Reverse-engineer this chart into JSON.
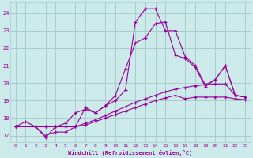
{
  "xlabel": "Windchill (Refroidissement éolien,°C)",
  "xlim": [
    -0.5,
    23.5
  ],
  "ylim": [
    16.6,
    24.6
  ],
  "yticks": [
    17,
    18,
    19,
    20,
    21,
    22,
    23,
    24
  ],
  "xticks": [
    0,
    1,
    2,
    3,
    4,
    5,
    6,
    7,
    8,
    9,
    10,
    11,
    12,
    13,
    14,
    15,
    16,
    17,
    18,
    19,
    20,
    21,
    22,
    23
  ],
  "bg_color": "#cceaea",
  "grid_color": "#aacccc",
  "line_color": "#990099",
  "lines": [
    {
      "x": [
        0,
        1,
        2,
        3,
        4,
        5,
        6,
        7,
        8,
        9,
        10,
        11,
        12,
        13,
        14,
        15,
        16,
        17,
        18,
        19,
        20,
        21,
        22,
        23
      ],
      "y": [
        17.5,
        17.8,
        17.5,
        17.0,
        17.2,
        17.2,
        17.5,
        18.6,
        18.3,
        18.7,
        19.0,
        19.6,
        23.5,
        24.25,
        24.25,
        23.0,
        23.0,
        21.5,
        21.0,
        19.9,
        20.2,
        21.0,
        19.3,
        19.2
      ]
    },
    {
      "x": [
        2,
        3,
        4,
        5,
        6,
        7,
        8,
        9,
        10,
        11,
        12,
        13,
        14,
        15,
        16,
        17,
        18,
        19,
        20,
        21,
        22,
        23
      ],
      "y": [
        17.5,
        16.9,
        17.5,
        17.7,
        18.3,
        18.5,
        18.3,
        18.7,
        19.3,
        20.8,
        22.3,
        22.6,
        23.4,
        23.5,
        21.6,
        21.4,
        20.9,
        19.8,
        20.2,
        21.0,
        19.3,
        19.2
      ]
    },
    {
      "x": [
        0,
        2,
        3,
        4,
        5,
        6,
        7,
        8,
        9,
        10,
        11,
        12,
        13,
        14,
        15,
        16,
        17,
        18,
        19,
        20,
        21,
        22,
        23
      ],
      "y": [
        17.5,
        17.5,
        17.5,
        17.5,
        17.5,
        17.5,
        17.7,
        17.9,
        18.15,
        18.4,
        18.65,
        18.9,
        19.1,
        19.3,
        19.5,
        19.65,
        19.75,
        19.85,
        19.9,
        19.95,
        19.95,
        19.3,
        19.2
      ]
    },
    {
      "x": [
        0,
        2,
        3,
        4,
        5,
        6,
        7,
        8,
        9,
        10,
        11,
        12,
        13,
        14,
        15,
        16,
        17,
        18,
        19,
        20,
        21,
        22,
        23
      ],
      "y": [
        17.5,
        17.5,
        17.5,
        17.5,
        17.5,
        17.5,
        17.6,
        17.8,
        18.0,
        18.2,
        18.4,
        18.6,
        18.8,
        19.0,
        19.15,
        19.3,
        19.1,
        19.2,
        19.2,
        19.2,
        19.2,
        19.1,
        19.05
      ]
    }
  ]
}
